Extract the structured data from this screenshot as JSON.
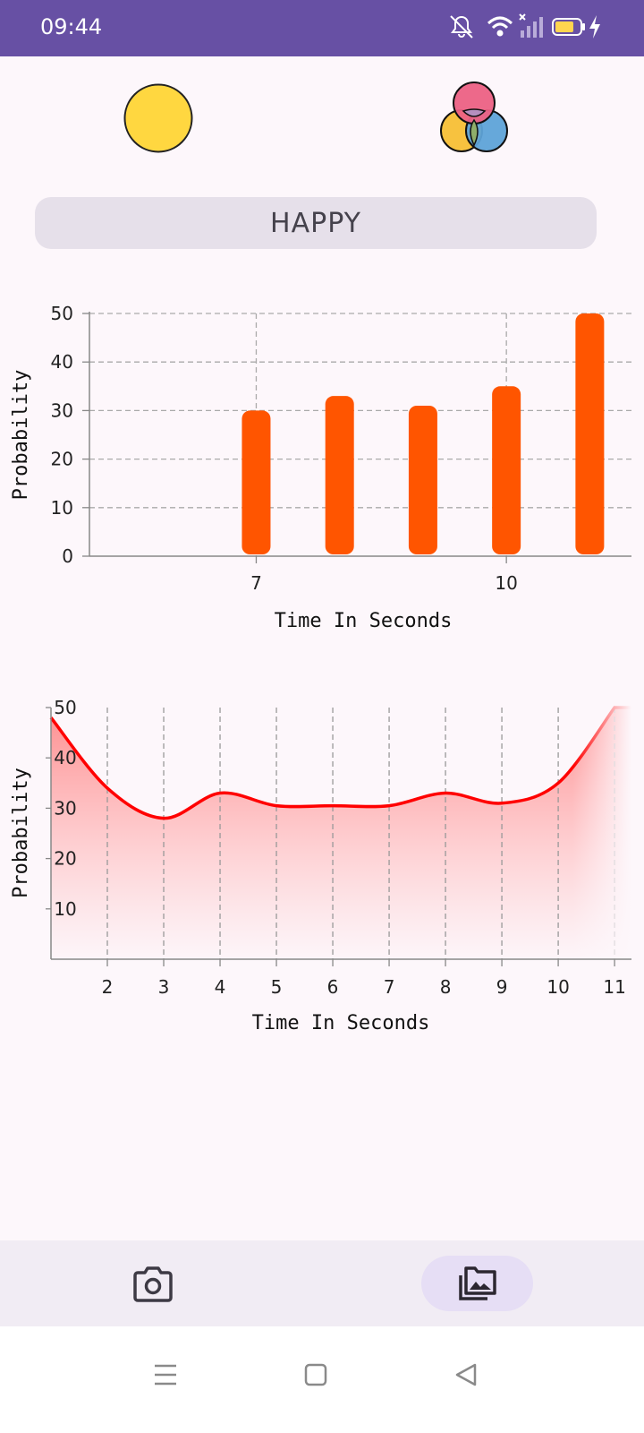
{
  "status_bar": {
    "time": "09:44",
    "icons": [
      "bell-off-icon",
      "wifi-icon",
      "signal-icon",
      "battery-icon",
      "charging-icon"
    ],
    "color": "#6750a4"
  },
  "header": {
    "mood_icon": "neutral-face-icon",
    "palette_icon": "color-circles-icon"
  },
  "emotion_label": "HAPPY",
  "chart_data": [
    {
      "type": "bar",
      "x": [
        7,
        8,
        9,
        10,
        11
      ],
      "values": [
        30,
        33,
        31,
        35,
        50
      ],
      "xticks": [
        7,
        10
      ],
      "yticks": [
        0,
        10,
        20,
        30,
        40,
        50
      ],
      "xlim": [
        5,
        11.5
      ],
      "ylim": [
        0,
        50
      ],
      "xlabel": "Time In Seconds",
      "ylabel": "Probability",
      "grid": true,
      "color": "#ff5500"
    },
    {
      "type": "area",
      "x": [
        1,
        2,
        3,
        4,
        5,
        6,
        7,
        8,
        9,
        10,
        11
      ],
      "values": [
        48,
        34,
        28,
        33,
        30.5,
        30.5,
        30.5,
        33,
        31,
        35,
        50
      ],
      "xticks": [
        2,
        3,
        4,
        5,
        6,
        7,
        8,
        9,
        10,
        11
      ],
      "yticks": [
        10,
        20,
        30,
        40,
        50
      ],
      "xlim": [
        1,
        11.3
      ],
      "ylim": [
        0,
        50
      ],
      "xlabel": "Time In Seconds",
      "ylabel": "Probability",
      "grid": true,
      "color": "#ff0000"
    }
  ],
  "bottom_nav": {
    "items": [
      {
        "icon": "camera-icon",
        "selected": false
      },
      {
        "icon": "photo-library-icon",
        "selected": true
      }
    ]
  },
  "system_nav": [
    "menu-icon",
    "home-icon",
    "back-icon"
  ]
}
